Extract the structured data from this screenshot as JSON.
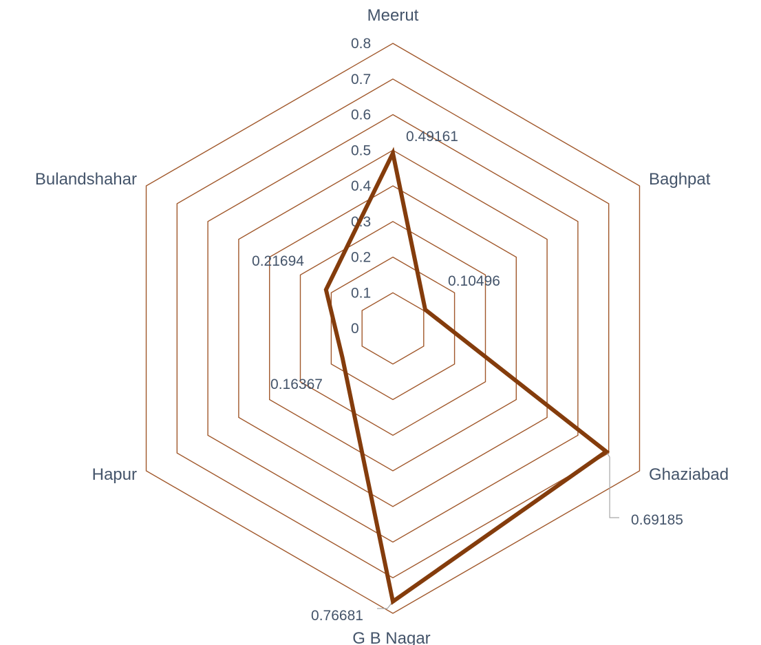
{
  "chart_data": {
    "type": "radar",
    "title": "",
    "categories": [
      "Meerut",
      "Baghpat",
      "Ghaziabad",
      "G B Nagar",
      "Hapur",
      "Bulandshahar"
    ],
    "series": [
      {
        "values": [
          0.49161,
          0.10496,
          0.69185,
          0.76681,
          0.16367,
          0.21694
        ],
        "data_labels": [
          "0.49161",
          "0.10496",
          "0.69185",
          "0.76681",
          "0.16367",
          "0.21694"
        ],
        "color": "#843C0C"
      }
    ],
    "ticks": [
      "0",
      "0.1",
      "0.2",
      "0.3",
      "0.4",
      "0.5",
      "0.6",
      "0.7",
      "0.8"
    ],
    "range": [
      0,
      0.8
    ],
    "gridline_color": "#A0572A",
    "text_color": "#44546A",
    "legend": "none"
  }
}
